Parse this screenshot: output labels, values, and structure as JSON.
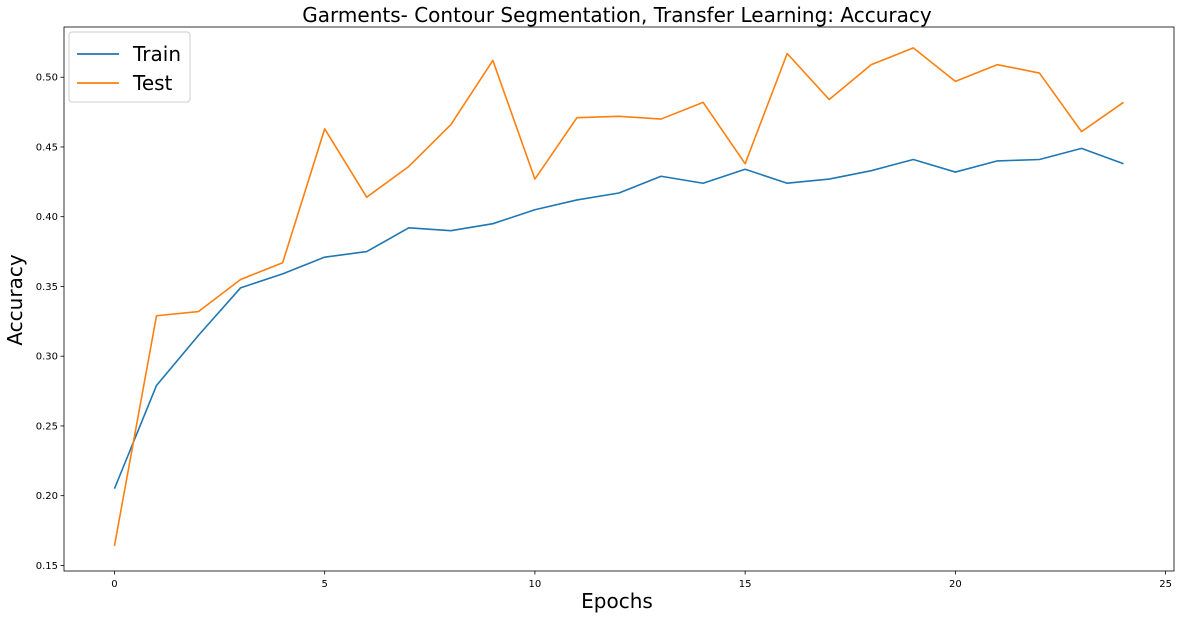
{
  "chart_data": {
    "type": "line",
    "title": "Garments- Contour Segmentation, Transfer Learning: Accuracy",
    "xlabel": "Epochs",
    "ylabel": "Accuracy",
    "xlim": [
      -1.2,
      25.2
    ],
    "ylim": [
      0.146,
      0.536
    ],
    "xticks": [
      0,
      5,
      10,
      15,
      20,
      25
    ],
    "yticks": [
      0.15,
      0.2,
      0.25,
      0.3,
      0.35,
      0.4,
      0.45,
      0.5
    ],
    "xtick_labels": [
      "0",
      "5",
      "10",
      "15",
      "20",
      "25"
    ],
    "ytick_labels": [
      "0.15",
      "0.20",
      "0.25",
      "0.30",
      "0.35",
      "0.40",
      "0.45",
      "0.50"
    ],
    "grid": false,
    "legend_position": "top-left",
    "x": [
      0,
      1,
      2,
      3,
      4,
      5,
      6,
      7,
      8,
      9,
      10,
      11,
      12,
      13,
      14,
      15,
      16,
      17,
      18,
      19,
      20,
      21,
      22,
      23,
      24
    ],
    "series": [
      {
        "name": "Train",
        "color": "#1f77b4",
        "values": [
          0.205,
          0.279,
          0.315,
          0.349,
          0.359,
          0.371,
          0.375,
          0.392,
          0.39,
          0.395,
          0.405,
          0.412,
          0.417,
          0.429,
          0.424,
          0.434,
          0.424,
          0.427,
          0.433,
          0.441,
          0.432,
          0.44,
          0.441,
          0.449,
          0.438
        ]
      },
      {
        "name": "Test",
        "color": "#ff7f0e",
        "values": [
          0.164,
          0.329,
          0.332,
          0.355,
          0.367,
          0.463,
          0.414,
          0.436,
          0.466,
          0.512,
          0.427,
          0.471,
          0.472,
          0.47,
          0.482,
          0.438,
          0.517,
          0.484,
          0.509,
          0.521,
          0.497,
          0.509,
          0.503,
          0.461,
          0.482
        ]
      }
    ]
  }
}
